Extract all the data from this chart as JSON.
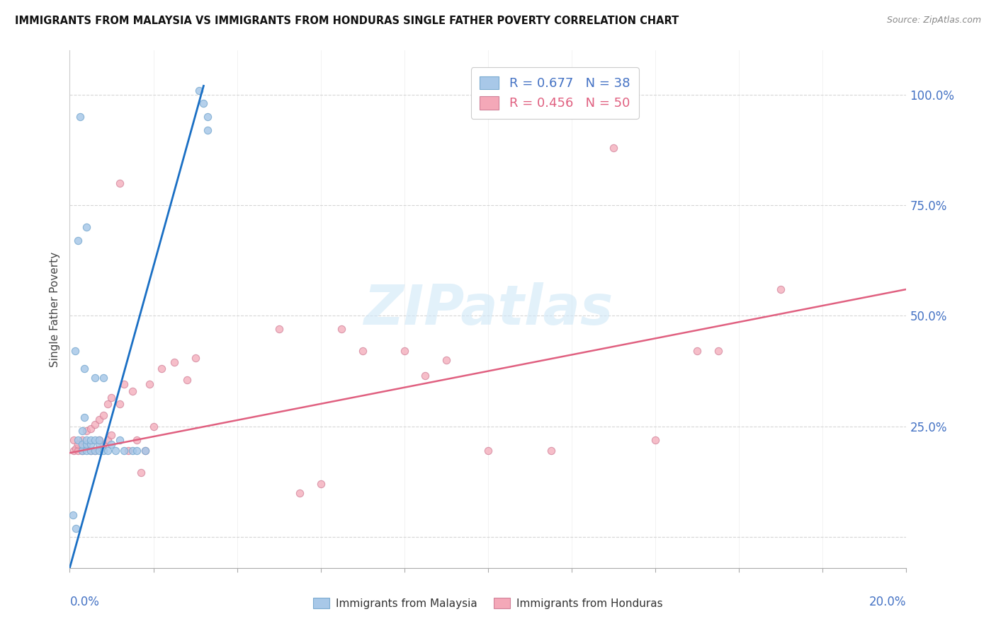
{
  "title": "IMMIGRANTS FROM MALAYSIA VS IMMIGRANTS FROM HONDURAS SINGLE FATHER POVERTY CORRELATION CHART",
  "source": "Source: ZipAtlas.com",
  "ylabel": "Single Father Poverty",
  "malaysia_color": "#a8c8e8",
  "honduras_color": "#f4a8b8",
  "malaysia_line_color": "#1a6fc4",
  "honduras_line_color": "#e06080",
  "malaysia_edge_color": "#7aaad0",
  "honduras_edge_color": "#d08098",
  "watermark_color": "#d0e8f8",
  "legend_r_malaysia": "R = 0.677",
  "legend_n_malaysia": "N = 38",
  "legend_r_honduras": "R = 0.456",
  "legend_n_honduras": "N = 50",
  "legend_malaysia_label": "Immigrants from Malaysia",
  "legend_honduras_label": "Immigrants from Honduras",
  "malaysia_line_x": [
    0.0,
    0.032
  ],
  "malaysia_line_y": [
    -0.07,
    1.02
  ],
  "honduras_line_x": [
    0.0,
    0.2
  ],
  "honduras_line_y": [
    0.19,
    0.56
  ],
  "xlim": [
    0.0,
    0.2
  ],
  "ylim": [
    -0.07,
    1.1
  ],
  "yticks": [
    0.0,
    0.25,
    0.5,
    0.75,
    1.0
  ],
  "ytick_labels_right": [
    "",
    "25.0%",
    "50.0%",
    "75.0%",
    "100.0%"
  ],
  "malaysia_x": [
    0.0008,
    0.0012,
    0.0015,
    0.002,
    0.002,
    0.0025,
    0.003,
    0.003,
    0.003,
    0.0035,
    0.0035,
    0.004,
    0.004,
    0.004,
    0.004,
    0.005,
    0.005,
    0.005,
    0.006,
    0.006,
    0.006,
    0.007,
    0.007,
    0.007,
    0.008,
    0.008,
    0.009,
    0.01,
    0.011,
    0.012,
    0.013,
    0.015,
    0.016,
    0.018,
    0.031,
    0.032,
    0.033,
    0.033
  ],
  "malaysia_y": [
    0.05,
    0.42,
    0.02,
    0.22,
    0.67,
    0.95,
    0.195,
    0.21,
    0.24,
    0.27,
    0.38,
    0.195,
    0.21,
    0.22,
    0.7,
    0.195,
    0.21,
    0.22,
    0.195,
    0.22,
    0.36,
    0.195,
    0.21,
    0.22,
    0.195,
    0.36,
    0.195,
    0.21,
    0.195,
    0.22,
    0.195,
    0.195,
    0.195,
    0.195,
    1.01,
    0.98,
    0.95,
    0.92
  ],
  "honduras_x": [
    0.001,
    0.001,
    0.0015,
    0.002,
    0.002,
    0.003,
    0.003,
    0.004,
    0.004,
    0.005,
    0.005,
    0.006,
    0.006,
    0.007,
    0.007,
    0.008,
    0.008,
    0.009,
    0.009,
    0.01,
    0.01,
    0.012,
    0.012,
    0.013,
    0.014,
    0.015,
    0.016,
    0.017,
    0.018,
    0.019,
    0.02,
    0.022,
    0.025,
    0.028,
    0.03,
    0.05,
    0.055,
    0.06,
    0.065,
    0.07,
    0.08,
    0.085,
    0.09,
    0.1,
    0.115,
    0.13,
    0.14,
    0.15,
    0.155,
    0.17
  ],
  "honduras_y": [
    0.195,
    0.22,
    0.2,
    0.195,
    0.21,
    0.195,
    0.22,
    0.21,
    0.24,
    0.195,
    0.245,
    0.195,
    0.255,
    0.22,
    0.265,
    0.21,
    0.275,
    0.22,
    0.3,
    0.23,
    0.315,
    0.8,
    0.3,
    0.345,
    0.195,
    0.33,
    0.22,
    0.145,
    0.195,
    0.345,
    0.25,
    0.38,
    0.395,
    0.355,
    0.405,
    0.47,
    0.1,
    0.12,
    0.47,
    0.42,
    0.42,
    0.365,
    0.4,
    0.195,
    0.195,
    0.88,
    0.22,
    0.42,
    0.42,
    0.56
  ]
}
